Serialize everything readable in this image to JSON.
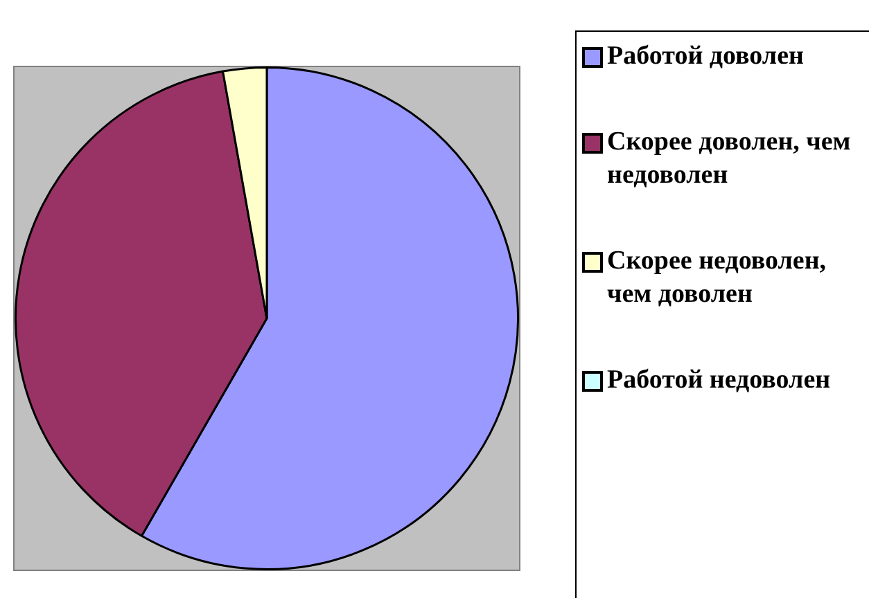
{
  "chart_data": {
    "type": "pie",
    "categories": [
      "Работой доволен",
      "Скорее доволен, чем недоволен",
      "Скорее недоволен, чем доволен",
      "Работой недоволен"
    ],
    "values": [
      58.3,
      38.9,
      2.8,
      0
    ],
    "colors": [
      "#9999ff",
      "#993366",
      "#ffffcc",
      "#ccffff"
    ],
    "legend": "right"
  }
}
